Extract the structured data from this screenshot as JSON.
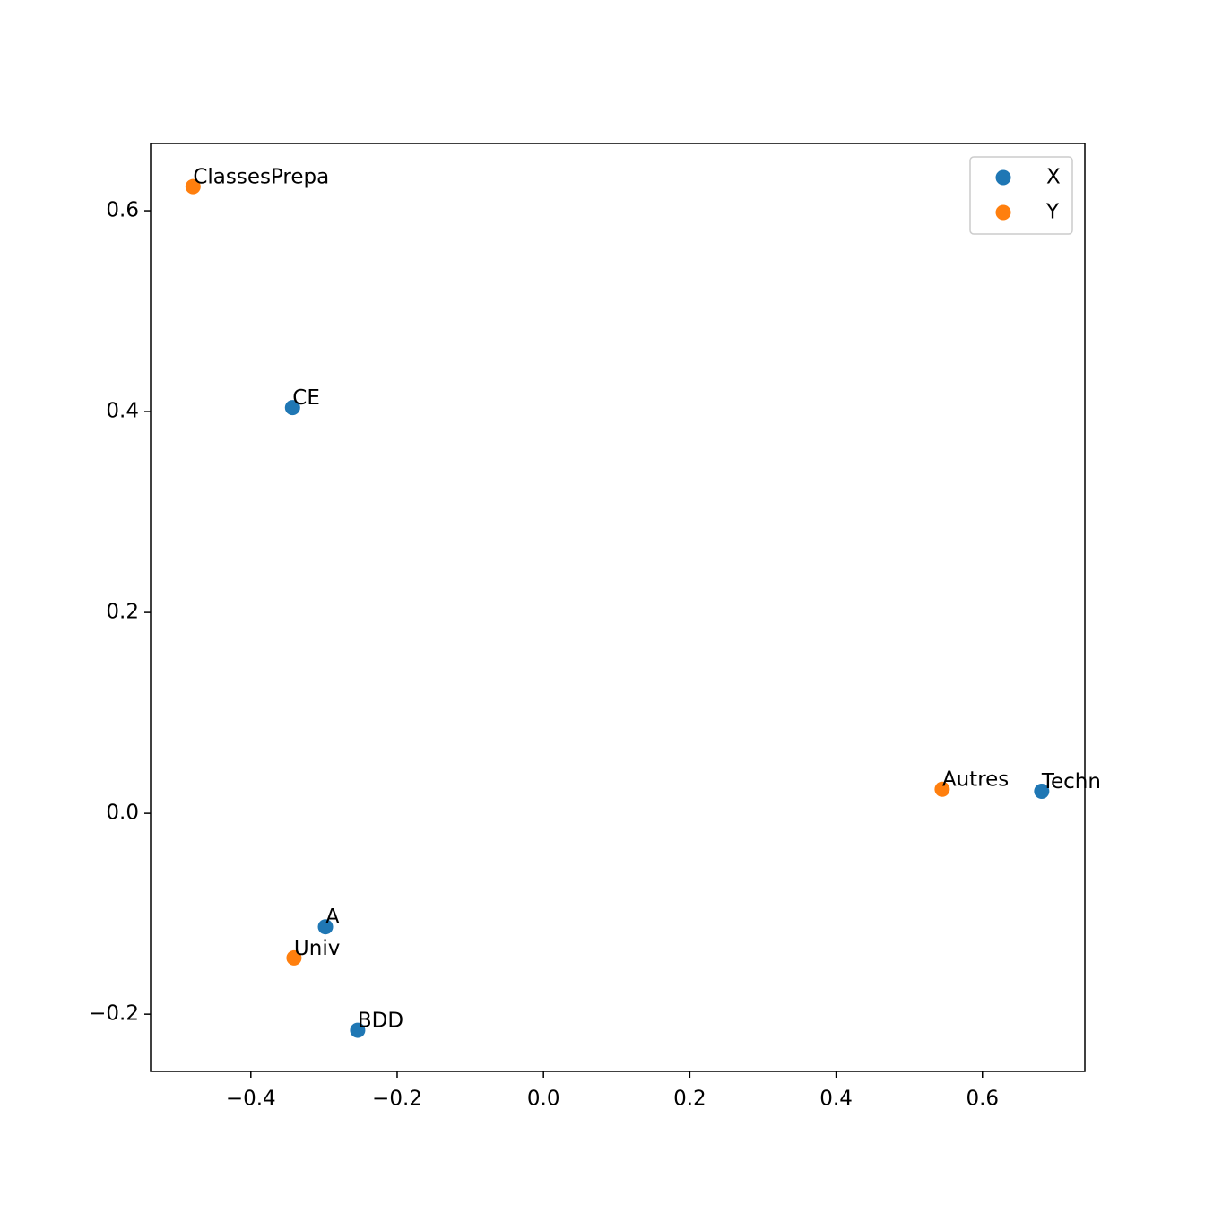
{
  "chart_data": {
    "type": "scatter",
    "series": [
      {
        "name": "X",
        "color": "#1f77b4",
        "x": [
          -0.343,
          -0.298,
          -0.254,
          0.681
        ],
        "y": [
          0.404,
          -0.113,
          -0.216,
          0.022
        ],
        "labels": [
          "CE",
          "A",
          "BDD",
          "Techn"
        ]
      },
      {
        "name": "Y",
        "color": "#ff7f0e",
        "x": [
          -0.479,
          -0.341,
          0.545
        ],
        "y": [
          0.624,
          -0.144,
          0.024
        ],
        "labels": [
          "ClassesPrepa",
          "Univ",
          "Autres"
        ]
      }
    ],
    "xlim": [
      -0.537,
      0.74
    ],
    "ylim": [
      -0.257,
      0.667
    ],
    "xticks": [
      {
        "value": -0.4,
        "label": "−0.4"
      },
      {
        "value": -0.2,
        "label": "−0.2"
      },
      {
        "value": 0,
        "label": "0.0"
      },
      0.2,
      0.4,
      0.6
    ],
    "yticks": [
      {
        "value": -0.2,
        "label": "−0.2"
      },
      {
        "value": 0,
        "label": "0.0"
      },
      0.2,
      0.4,
      0.6
    ],
    "legend": "upper right"
  }
}
